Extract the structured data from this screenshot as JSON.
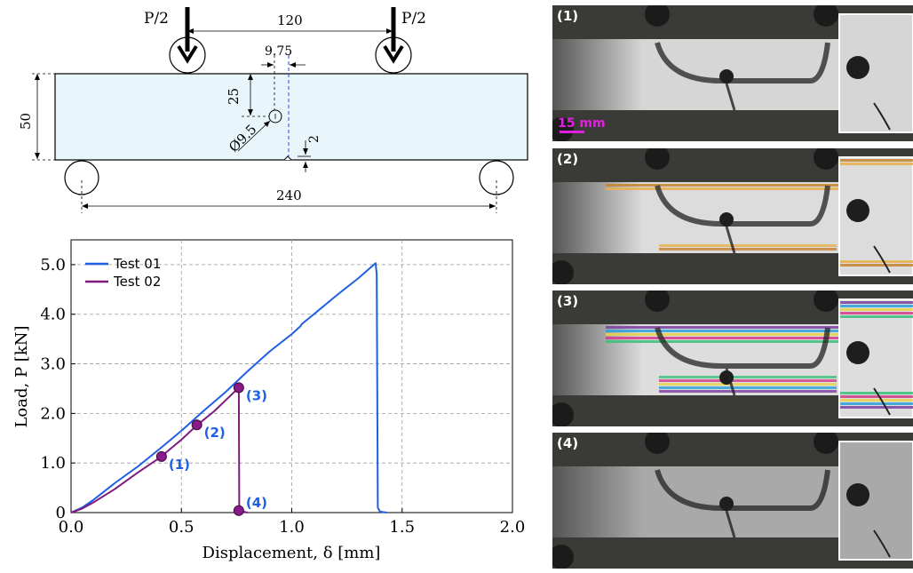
{
  "beam": {
    "load_left": "P/2",
    "load_right": "P/2",
    "span_loads": "120",
    "offset": "9.75",
    "hole_depth": "25",
    "height": "50",
    "hole_diameter": "Ø9.5",
    "notch": "2",
    "span_supports": "240"
  },
  "chart_data": {
    "type": "line",
    "xlabel": "Displacement, δ [mm]",
    "ylabel": "Load, P [kN]",
    "xlim": [
      0,
      2.0
    ],
    "ylim": [
      0,
      5.5
    ],
    "xticks": [
      "0.0",
      "0.5",
      "1.0",
      "1.5",
      "2.0"
    ],
    "yticks": [
      "0",
      "1.0",
      "2.0",
      "3.0",
      "4.0",
      "5.0"
    ],
    "grid": true,
    "legend_position": "top-left",
    "series": [
      {
        "name": "Test 01",
        "color": "#1f5fe6",
        "x": [
          0.0,
          0.05,
          0.1,
          0.2,
          0.3,
          0.4,
          0.5,
          0.6,
          0.7,
          0.8,
          0.9,
          1.0,
          1.04,
          1.045,
          1.1,
          1.2,
          1.3,
          1.38,
          1.385,
          1.39,
          1.4,
          1.43
        ],
        "y": [
          0.0,
          0.1,
          0.25,
          0.6,
          0.92,
          1.28,
          1.65,
          2.05,
          2.43,
          2.85,
          3.25,
          3.6,
          3.76,
          3.8,
          4.0,
          4.37,
          4.72,
          5.03,
          4.8,
          0.1,
          0.02,
          0.0
        ]
      },
      {
        "name": "Test 02",
        "color": "#7e1a7e",
        "x": [
          0.0,
          0.05,
          0.1,
          0.2,
          0.3,
          0.4,
          0.5,
          0.57,
          0.65,
          0.76,
          0.762,
          0.77,
          0.8
        ],
        "y": [
          0.0,
          0.08,
          0.2,
          0.48,
          0.8,
          1.1,
          1.47,
          1.76,
          2.05,
          2.52,
          0.06,
          0.03,
          0.0
        ]
      }
    ],
    "annotations": [
      {
        "label": "(1)",
        "x": 0.41,
        "y": 1.13
      },
      {
        "label": "(2)",
        "x": 0.57,
        "y": 1.77
      },
      {
        "label": "(3)",
        "x": 0.76,
        "y": 2.52
      },
      {
        "label": "(4)",
        "x": 0.76,
        "y": 0.04
      }
    ]
  },
  "photos": {
    "scale_bar": "15 mm",
    "panels": [
      {
        "label": "(1)",
        "bright": "#d6d6d6",
        "stage": 0
      },
      {
        "label": "(2)",
        "bright": "#dcdcdc",
        "stage": 1
      },
      {
        "label": "(3)",
        "bright": "#dddddd",
        "stage": 2
      },
      {
        "label": "(4)",
        "bright": "#a9a9aa",
        "stage": 3
      }
    ]
  }
}
